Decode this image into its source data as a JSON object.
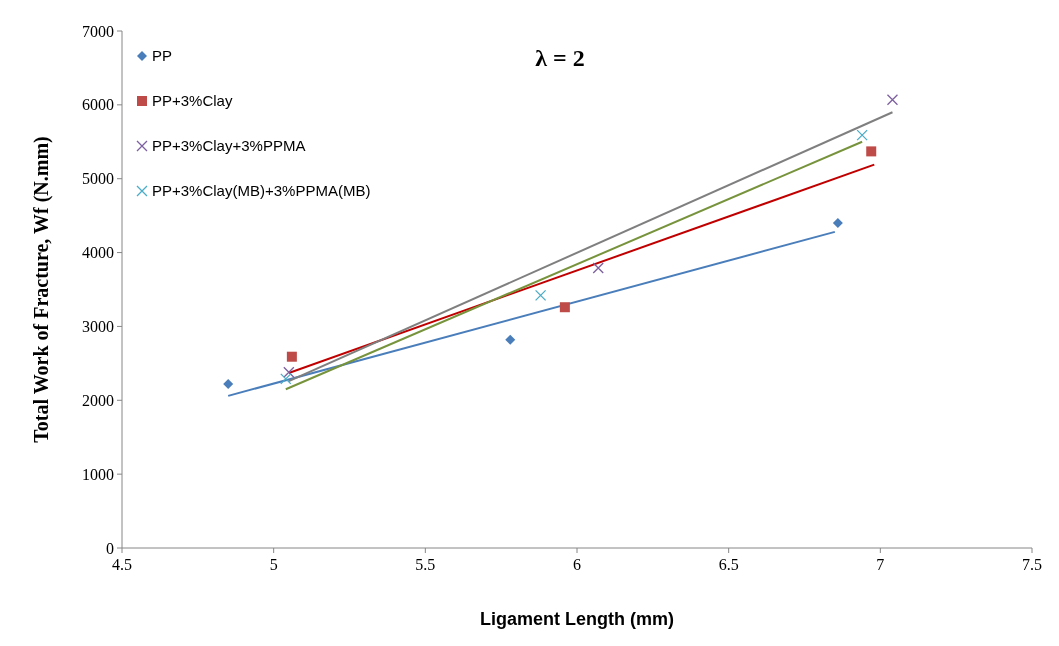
{
  "chart_data": {
    "type": "scatter",
    "title": "λ = 2",
    "xlabel": "Ligament Length (mm)",
    "ylabel": "Total Work of Fracture,  Wf (N.mm)",
    "xlim": [
      4.5,
      7.5
    ],
    "xticks": [
      4.5,
      5,
      5.5,
      6,
      6.5,
      7,
      7.5
    ],
    "ylim": [
      0,
      7000
    ],
    "yticks": [
      0,
      1000,
      2000,
      3000,
      4000,
      5000,
      6000,
      7000
    ],
    "grid": false,
    "legend": "top left",
    "series": [
      {
        "name": "PP",
        "color": "#4a7ebb",
        "marker": "diamond",
        "x": [
          4.85,
          5.78,
          6.86
        ],
        "values": [
          2220,
          2820,
          4400
        ]
      },
      {
        "name": "PP+3%Clay",
        "color": "#be4b48",
        "marker": "square",
        "x": [
          5.06,
          5.96,
          6.97
        ],
        "values": [
          2590,
          3260,
          5370
        ]
      },
      {
        "name": "PP+3%Clay+3%PPMA",
        "color": "#7d60a0",
        "marker": "cross",
        "x": [
          5.05,
          6.07,
          7.04
        ],
        "values": [
          2380,
          3790,
          6070
        ]
      },
      {
        "name": "PP+3%Clay(MB)+3%PPMA(MB)",
        "color": "#4bacc6",
        "marker": "cross",
        "x": [
          5.04,
          5.88,
          6.94
        ],
        "values": [
          2290,
          3420,
          5590
        ]
      },
      {
        "type": "line",
        "color": "#4a7ebb",
        "marker": "none",
        "x": [
          4.85,
          6.85
        ],
        "values": [
          2060,
          4280
        ]
      },
      {
        "type": "line",
        "color": "#c00000",
        "marker": "none",
        "x": [
          5.05,
          6.98
        ],
        "values": [
          2370,
          5190
        ]
      },
      {
        "type": "line",
        "color": "#77933c",
        "marker": "none",
        "x": [
          5.04,
          6.94
        ],
        "values": [
          2150,
          5500
        ]
      },
      {
        "type": "line",
        "color": "#7f7f7f",
        "marker": "none",
        "x": [
          5.05,
          7.04
        ],
        "values": [
          2260,
          5900
        ]
      }
    ]
  }
}
